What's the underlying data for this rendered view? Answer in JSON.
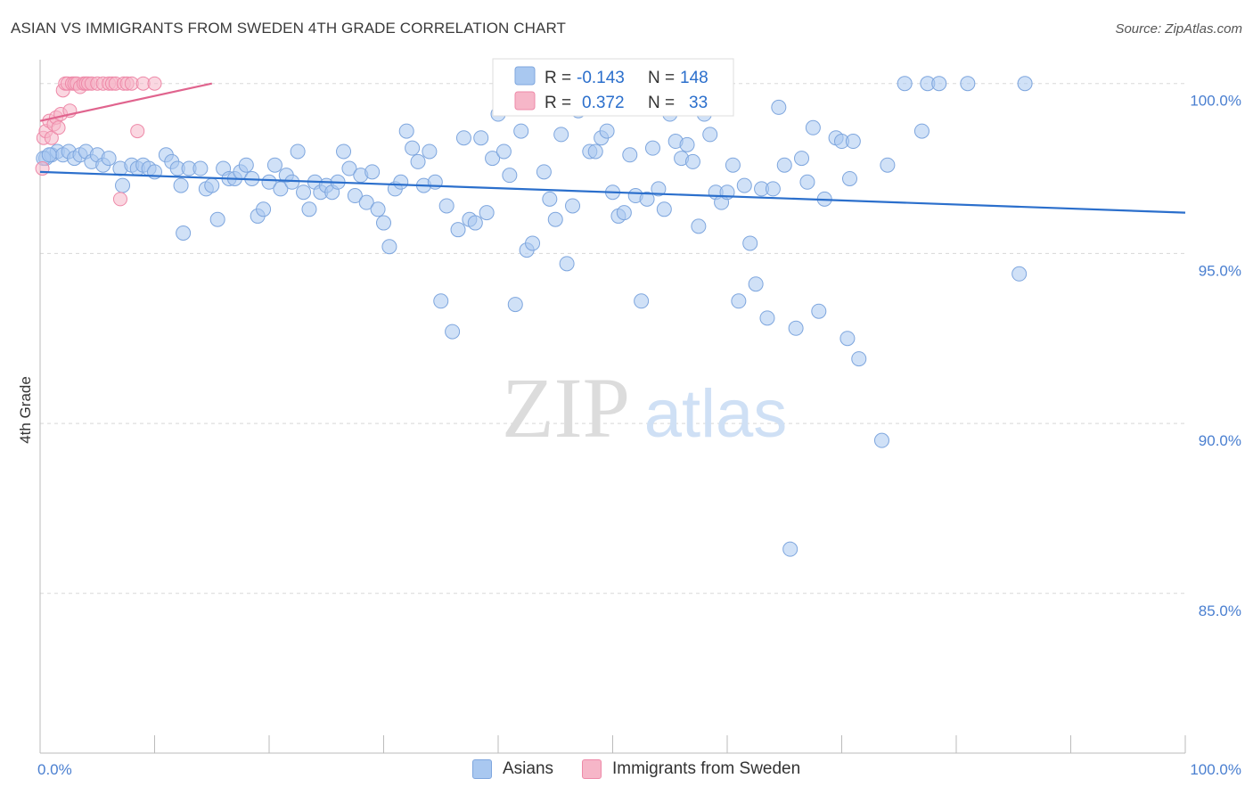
{
  "header": {
    "title": "ASIAN VS IMMIGRANTS FROM SWEDEN 4TH GRADE CORRELATION CHART",
    "source": "Source: ZipAtlas.com"
  },
  "watermark": {
    "zip": "ZIP",
    "atlas": "atlas"
  },
  "legend_top": {
    "asians": {
      "r_label": "R = ",
      "r_value": "-0.143",
      "n_label": "N = ",
      "n_value": "148"
    },
    "sweden": {
      "r_label": "R = ",
      "r_value": "0.372",
      "n_label": "N = ",
      "n_value": "33"
    }
  },
  "legend_bottom": {
    "asians": "Asians",
    "sweden": "Immigrants from Sweden"
  },
  "colors": {
    "asians_fill": "#a9c8f0",
    "asians_stroke": "#7ea6de",
    "asians_line": "#2b6fcc",
    "sweden_fill": "#f6b6c8",
    "sweden_stroke": "#ee89a8",
    "sweden_line": "#e0648e",
    "tick_text": "#4a7fd0",
    "grid": "#d8d8d8"
  },
  "chart_data": {
    "type": "scatter",
    "xlabel": "",
    "ylabel": "4th Grade",
    "xlim": [
      0,
      100
    ],
    "ylim": [
      80.3,
      100.7
    ],
    "x_tick_labels": [
      {
        "value": 0,
        "label": "0.0%"
      },
      {
        "value": 100,
        "label": "100.0%"
      }
    ],
    "y_tick_labels": [
      {
        "value": 100,
        "label": "100.0%"
      },
      {
        "value": 95,
        "label": "95.0%"
      },
      {
        "value": 90,
        "label": "90.0%"
      },
      {
        "value": 85,
        "label": "85.0%"
      }
    ],
    "grid": "horizontal dashed",
    "legend_position": "top-center",
    "series": [
      {
        "name": "Asians",
        "trend": {
          "x": [
            0,
            100
          ],
          "y": [
            97.4,
            96.2
          ]
        },
        "points": [
          [
            0.5,
            97.8
          ],
          [
            1,
            97.9
          ],
          [
            1.5,
            98.0
          ],
          [
            2,
            97.9
          ],
          [
            2.5,
            98.0
          ],
          [
            3,
            97.8
          ],
          [
            3.5,
            97.9
          ],
          [
            4,
            98.0
          ],
          [
            4.5,
            97.7
          ],
          [
            5,
            97.9
          ],
          [
            5.5,
            97.6
          ],
          [
            6,
            97.8
          ],
          [
            7,
            97.5
          ],
          [
            7.2,
            97.0
          ],
          [
            8,
            97.6
          ],
          [
            8.5,
            97.5
          ],
          [
            9,
            97.6
          ],
          [
            9.5,
            97.5
          ],
          [
            10,
            97.4
          ],
          [
            11,
            97.9
          ],
          [
            11.5,
            97.7
          ],
          [
            12,
            97.5
          ],
          [
            12.3,
            97.0
          ],
          [
            12.5,
            95.6
          ],
          [
            13,
            97.5
          ],
          [
            14,
            97.5
          ],
          [
            14.5,
            96.9
          ],
          [
            15,
            97.0
          ],
          [
            15.5,
            96.0
          ],
          [
            16,
            97.5
          ],
          [
            16.5,
            97.2
          ],
          [
            17,
            97.2
          ],
          [
            17.5,
            97.4
          ],
          [
            18,
            97.6
          ],
          [
            18.5,
            97.2
          ],
          [
            19,
            96.1
          ],
          [
            19.5,
            96.3
          ],
          [
            20,
            97.1
          ],
          [
            20.5,
            97.6
          ],
          [
            21,
            96.9
          ],
          [
            21.5,
            97.3
          ],
          [
            22,
            97.1
          ],
          [
            22.5,
            98.0
          ],
          [
            23,
            96.8
          ],
          [
            23.5,
            96.3
          ],
          [
            24,
            97.1
          ],
          [
            24.5,
            96.8
          ],
          [
            25,
            97.0
          ],
          [
            25.5,
            96.8
          ],
          [
            26,
            97.1
          ],
          [
            26.5,
            98.0
          ],
          [
            27,
            97.5
          ],
          [
            27.5,
            96.7
          ],
          [
            28,
            97.3
          ],
          [
            28.5,
            96.5
          ],
          [
            29,
            97.4
          ],
          [
            29.5,
            96.3
          ],
          [
            30,
            95.9
          ],
          [
            30.5,
            95.2
          ],
          [
            31,
            96.9
          ],
          [
            31.5,
            97.1
          ],
          [
            32,
            98.6
          ],
          [
            32.5,
            98.1
          ],
          [
            33,
            97.7
          ],
          [
            33.5,
            97.0
          ],
          [
            34,
            98.0
          ],
          [
            34.5,
            97.1
          ],
          [
            35,
            93.6
          ],
          [
            35.5,
            96.4
          ],
          [
            36,
            92.7
          ],
          [
            36.5,
            95.7
          ],
          [
            37,
            98.4
          ],
          [
            37.5,
            96.0
          ],
          [
            38,
            95.9
          ],
          [
            38.5,
            98.4
          ],
          [
            39,
            96.2
          ],
          [
            39.5,
            97.8
          ],
          [
            40,
            99.1
          ],
          [
            40.5,
            98.0
          ],
          [
            41,
            97.3
          ],
          [
            41.5,
            93.5
          ],
          [
            42,
            98.6
          ],
          [
            42.5,
            95.1
          ],
          [
            43,
            95.3
          ],
          [
            44,
            97.4
          ],
          [
            44.5,
            96.6
          ],
          [
            45,
            96.0
          ],
          [
            45.5,
            98.5
          ],
          [
            46,
            94.7
          ],
          [
            46.5,
            96.4
          ],
          [
            47,
            99.2
          ],
          [
            48,
            98.0
          ],
          [
            48.5,
            98.0
          ],
          [
            49,
            98.4
          ],
          [
            49.5,
            98.6
          ],
          [
            50,
            96.8
          ],
          [
            50.5,
            96.1
          ],
          [
            51,
            96.2
          ],
          [
            51.5,
            97.9
          ],
          [
            52,
            96.7
          ],
          [
            52.5,
            93.6
          ],
          [
            53,
            96.6
          ],
          [
            53.5,
            98.1
          ],
          [
            54,
            96.9
          ],
          [
            54.5,
            96.3
          ],
          [
            55,
            99.1
          ],
          [
            55.5,
            98.3
          ],
          [
            56,
            97.8
          ],
          [
            56.5,
            98.2
          ],
          [
            57,
            97.7
          ],
          [
            57.5,
            95.8
          ],
          [
            58,
            99.1
          ],
          [
            58.5,
            98.5
          ],
          [
            59,
            96.8
          ],
          [
            59.5,
            96.5
          ],
          [
            60,
            96.8
          ],
          [
            60.5,
            97.6
          ],
          [
            61,
            93.6
          ],
          [
            61.5,
            97.0
          ],
          [
            62,
            95.3
          ],
          [
            62.5,
            94.1
          ],
          [
            63,
            96.9
          ],
          [
            63.5,
            93.1
          ],
          [
            64,
            96.9
          ],
          [
            64.5,
            99.3
          ],
          [
            65,
            97.6
          ],
          [
            65.5,
            86.3
          ],
          [
            66,
            92.8
          ],
          [
            66.5,
            97.8
          ],
          [
            67,
            97.1
          ],
          [
            67.5,
            98.7
          ],
          [
            68,
            93.3
          ],
          [
            68.5,
            96.6
          ],
          [
            69.5,
            98.4
          ],
          [
            70,
            98.3
          ],
          [
            70.5,
            92.5
          ],
          [
            70.7,
            97.2
          ],
          [
            71,
            98.3
          ],
          [
            71.5,
            91.9
          ],
          [
            73.5,
            89.5
          ],
          [
            74,
            97.6
          ],
          [
            75.5,
            100.0
          ],
          [
            77,
            98.6
          ],
          [
            77.5,
            100.0
          ],
          [
            78.5,
            100.0
          ],
          [
            81,
            100.0
          ],
          [
            85.5,
            94.4
          ],
          [
            86,
            100.0
          ],
          [
            0.3,
            97.8
          ],
          [
            0.8,
            97.9
          ]
        ]
      },
      {
        "name": "Immigrants from Sweden",
        "trend": {
          "x": [
            0,
            15
          ],
          "y": [
            98.9,
            100.0
          ]
        },
        "points": [
          [
            0.2,
            97.5
          ],
          [
            0.3,
            98.4
          ],
          [
            0.5,
            98.6
          ],
          [
            0.8,
            98.9
          ],
          [
            1,
            98.4
          ],
          [
            1.2,
            98.8
          ],
          [
            1.4,
            99.0
          ],
          [
            1.6,
            98.7
          ],
          [
            1.8,
            99.1
          ],
          [
            2,
            99.8
          ],
          [
            2.2,
            100.0
          ],
          [
            2.4,
            100.0
          ],
          [
            2.6,
            99.2
          ],
          [
            2.8,
            100.0
          ],
          [
            3,
            100.0
          ],
          [
            3.2,
            100.0
          ],
          [
            3.5,
            99.9
          ],
          [
            3.8,
            100.0
          ],
          [
            4,
            100.0
          ],
          [
            4.2,
            100.0
          ],
          [
            4.5,
            100.0
          ],
          [
            5,
            100.0
          ],
          [
            5.5,
            100.0
          ],
          [
            6,
            100.0
          ],
          [
            6.3,
            100.0
          ],
          [
            6.6,
            100.0
          ],
          [
            7,
            96.6
          ],
          [
            7.3,
            100.0
          ],
          [
            7.6,
            100.0
          ],
          [
            8,
            100.0
          ],
          [
            8.5,
            98.6
          ],
          [
            9,
            100.0
          ],
          [
            10,
            100.0
          ]
        ]
      }
    ]
  }
}
